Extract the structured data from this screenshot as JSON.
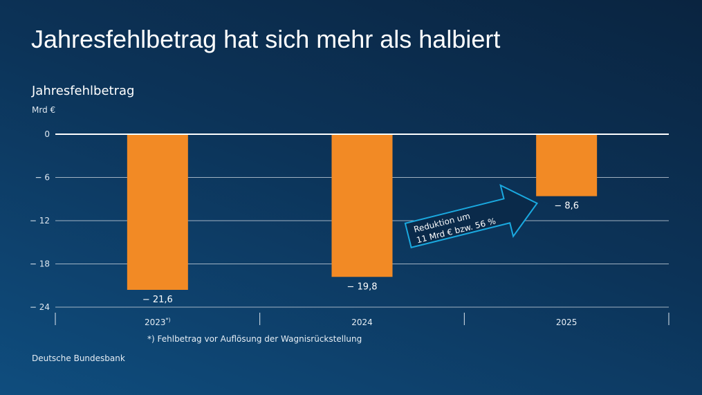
{
  "title": "Jahresfehlbetrag hat sich mehr als halbiert",
  "footnote": "*) Fehlbetrag vor Auflösung der Wagnisrückstellung",
  "source": "Deutsche Bundesbank",
  "colors": {
    "bar": "#f28a25",
    "arrow": "#1aa9e0",
    "grid": "#c8d2dc"
  },
  "chart_data": {
    "type": "bar",
    "title": "Jahresfehlbetrag",
    "ylabel": "Mrd €",
    "categories": [
      "2023*)",
      "2024",
      "2025"
    ],
    "values": [
      -21.6,
      -19.8,
      -8.6
    ],
    "data_labels": [
      "− 21,6",
      "− 19,8",
      "− 8,6"
    ],
    "ylim": [
      -24,
      0
    ],
    "yticks": [
      0,
      -6,
      -12,
      -18,
      -24
    ],
    "ytick_labels": [
      "0",
      "− 6",
      "− 12",
      "− 18",
      "− 24"
    ],
    "grid": true,
    "annotation": {
      "line1": "Reduktion um",
      "line2": "11 Mrd € bzw. 56 %"
    }
  }
}
